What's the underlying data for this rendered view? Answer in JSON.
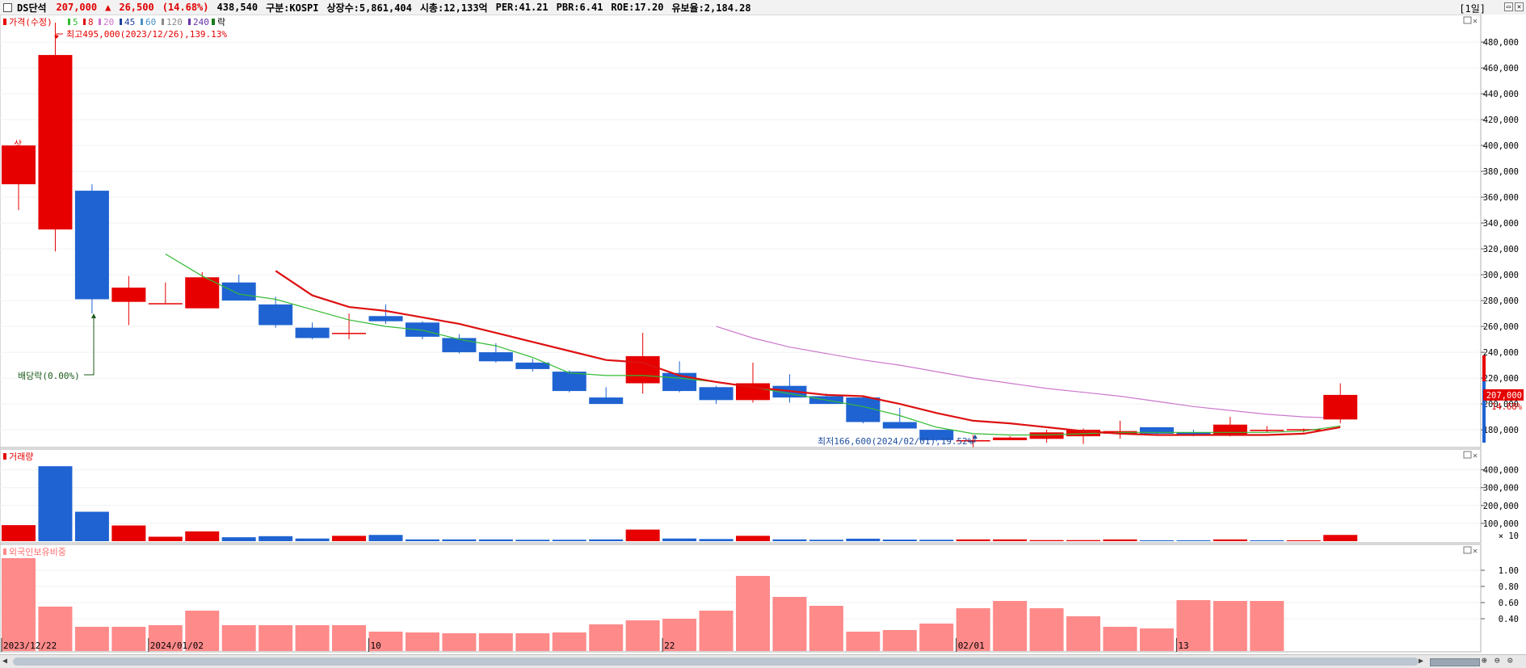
{
  "header": {
    "stock_name": "DS단석",
    "price": "207,000",
    "change_arrow": "▲",
    "change": "26,500",
    "change_pct": "(14.68%)",
    "volume": "438,540",
    "market": "구분:KOSPI",
    "listed_shares": "상장수:5,861,404",
    "market_cap": "시총:12,133억",
    "per": "PER:41.21",
    "pbr": "PBR:6.41",
    "roe": "ROE:17.20",
    "float_ratio": "유보율:2,184.28",
    "period": "[1일]"
  },
  "colors": {
    "up": "#e60000",
    "down": "#1f63d2",
    "ma5": "#33bb33",
    "ma8": "#dd1111",
    "ma20": "#cc77cc",
    "foreign": "#ff8a8a"
  },
  "legend": {
    "price_label": "가격(수정)",
    "ma": [
      {
        "label": "5",
        "color": "#33bb33"
      },
      {
        "label": "8",
        "color": "#dd1111"
      },
      {
        "label": "20",
        "color": "#cc77cc"
      },
      {
        "label": "45",
        "color": "#1f3fa0"
      },
      {
        "label": "60",
        "color": "#4a90c8"
      },
      {
        "label": "120",
        "color": "#8a8a8a"
      },
      {
        "label": "240",
        "color": "#6633aa"
      }
    ],
    "drop_label": "락"
  },
  "annotations": {
    "high": "최고495,000(2023/12/26),139.13%",
    "low": "최저166,600(2024/02/01),19.52%",
    "dividend": "배당락(0.00%)",
    "limit_up": "상"
  },
  "price_panel": {
    "current_label": "207,000",
    "current_pct": "14.68%"
  },
  "volume_panel": {
    "title": "거래량",
    "unit": "× 10"
  },
  "foreign_panel": {
    "title": "외국인보유비중"
  },
  "x_labels": [
    {
      "index": 0,
      "text": "2023/12/22"
    },
    {
      "index": 4,
      "text": "2024/01/02"
    },
    {
      "index": 10,
      "text": "10"
    },
    {
      "index": 18,
      "text": "22"
    },
    {
      "index": 26,
      "text": "02/01"
    },
    {
      "index": 32,
      "text": "13"
    }
  ],
  "chart_data": [
    {
      "type": "candlestick",
      "title": "가격(수정)",
      "y_ticks": [
        180000,
        200000,
        220000,
        240000,
        260000,
        280000,
        300000,
        320000,
        340000,
        360000,
        380000,
        400000,
        420000,
        440000,
        460000,
        480000
      ],
      "ylim": [
        162000,
        500000
      ],
      "candles": [
        {
          "o": 370000,
          "h": 400000,
          "l": 350000,
          "c": 400000
        },
        {
          "o": 335000,
          "h": 495000,
          "l": 318000,
          "c": 470000
        },
        {
          "o": 365000,
          "h": 370000,
          "l": 270000,
          "c": 281000
        },
        {
          "o": 279000,
          "h": 299000,
          "l": 261000,
          "c": 290000
        },
        {
          "o": 278000,
          "h": 294000,
          "l": 278000,
          "c": 278000
        },
        {
          "o": 274000,
          "h": 302000,
          "l": 274000,
          "c": 298000
        },
        {
          "o": 294000,
          "h": 300000,
          "l": 281000,
          "c": 280000
        },
        {
          "o": 277000,
          "h": 283000,
          "l": 259000,
          "c": 261000
        },
        {
          "o": 259000,
          "h": 263000,
          "l": 250000,
          "c": 251000
        },
        {
          "o": 255000,
          "h": 270000,
          "l": 250000,
          "c": 255000
        },
        {
          "o": 268000,
          "h": 277000,
          "l": 262000,
          "c": 264000
        },
        {
          "o": 263000,
          "h": 264000,
          "l": 250000,
          "c": 252000
        },
        {
          "o": 251000,
          "h": 254000,
          "l": 239000,
          "c": 240000
        },
        {
          "o": 240000,
          "h": 247000,
          "l": 232000,
          "c": 233000
        },
        {
          "o": 232000,
          "h": 235000,
          "l": 225000,
          "c": 227000
        },
        {
          "o": 225000,
          "h": 226000,
          "l": 209000,
          "c": 210000
        },
        {
          "o": 205000,
          "h": 213000,
          "l": 200000,
          "c": 200000
        },
        {
          "o": 216000,
          "h": 255000,
          "l": 208000,
          "c": 237000
        },
        {
          "o": 224000,
          "h": 233000,
          "l": 209000,
          "c": 210000
        },
        {
          "o": 213000,
          "h": 214000,
          "l": 200000,
          "c": 203000
        },
        {
          "o": 203000,
          "h": 232000,
          "l": 201000,
          "c": 216000
        },
        {
          "o": 214000,
          "h": 223000,
          "l": 201000,
          "c": 205000
        },
        {
          "o": 206000,
          "h": 208000,
          "l": 200000,
          "c": 200000
        },
        {
          "o": 205000,
          "h": 206000,
          "l": 185000,
          "c": 186000
        },
        {
          "o": 186000,
          "h": 197000,
          "l": 181000,
          "c": 181000
        },
        {
          "o": 180000,
          "h": 180000,
          "l": 171000,
          "c": 172000
        },
        {
          "o": 171000,
          "h": 176000,
          "l": 166600,
          "c": 172000
        },
        {
          "o": 172000,
          "h": 175000,
          "l": 172000,
          "c": 174000
        },
        {
          "o": 173000,
          "h": 180000,
          "l": 170000,
          "c": 178000
        },
        {
          "o": 175000,
          "h": 181000,
          "l": 169000,
          "c": 180000
        },
        {
          "o": 177000,
          "h": 187000,
          "l": 173000,
          "c": 179000
        },
        {
          "o": 182000,
          "h": 182000,
          "l": 176000,
          "c": 177000
        },
        {
          "o": 178000,
          "h": 180000,
          "l": 175000,
          "c": 176000
        },
        {
          "o": 176000,
          "h": 190000,
          "l": 175000,
          "c": 184000
        },
        {
          "o": 179000,
          "h": 183000,
          "l": 178000,
          "c": 180000
        },
        {
          "o": 180500,
          "h": 181000,
          "l": 178000,
          "c": 180500
        },
        {
          "o": 188000,
          "h": 216000,
          "l": 185000,
          "c": 207000
        }
      ],
      "series": [
        {
          "name": "5",
          "values": [
            null,
            null,
            null,
            null,
            316000,
            299000,
            285000,
            281000,
            273000,
            265000,
            260000,
            257000,
            250000,
            245000,
            236000,
            224000,
            222000,
            222000,
            220000,
            217000,
            213000,
            208000,
            203000,
            198000,
            191000,
            182000,
            177000,
            176000,
            176000,
            177000,
            178000,
            178000,
            178000,
            178000,
            178000,
            179000,
            183000
          ]
        },
        {
          "name": "8",
          "values": [
            null,
            null,
            null,
            null,
            null,
            null,
            null,
            303000,
            284000,
            275000,
            272000,
            267000,
            262000,
            255000,
            248000,
            241000,
            234000,
            232000,
            222000,
            217000,
            213000,
            210000,
            207000,
            206000,
            200000,
            193000,
            187000,
            185000,
            182000,
            179000,
            177000,
            176000,
            176000,
            176000,
            176000,
            177000,
            182000
          ]
        },
        {
          "name": "20",
          "values": [
            null,
            null,
            null,
            null,
            null,
            null,
            null,
            null,
            null,
            null,
            null,
            null,
            null,
            null,
            null,
            null,
            null,
            null,
            null,
            260000,
            251000,
            244000,
            239000,
            234000,
            230000,
            225000,
            220000,
            216000,
            212000,
            209000,
            206000,
            202000,
            198000,
            195000,
            192000,
            190000,
            189000
          ]
        }
      ]
    },
    {
      "type": "bar",
      "title": "거래량",
      "y_ticks": [
        100000,
        200000,
        300000,
        400000
      ],
      "ylim": [
        0,
        500000
      ],
      "values": [
        90000,
        420000,
        165000,
        88000,
        25000,
        55000,
        22000,
        28000,
        15000,
        30000,
        35000,
        10000,
        10000,
        10000,
        8000,
        8000,
        10000,
        65000,
        15000,
        12000,
        30000,
        10000,
        8000,
        14000,
        9000,
        8000,
        10000,
        10000,
        6000,
        6000,
        10000,
        5000,
        5000,
        10000,
        5000,
        5000,
        35000
      ],
      "colors": [
        "up",
        "down",
        "down",
        "up",
        "up",
        "up",
        "down",
        "down",
        "down",
        "up",
        "down",
        "down",
        "down",
        "down",
        "down",
        "down",
        "down",
        "up",
        "down",
        "down",
        "up",
        "down",
        "down",
        "down",
        "down",
        "down",
        "up",
        "up",
        "up",
        "up",
        "up",
        "down",
        "down",
        "up",
        "down",
        "up",
        "up"
      ]
    },
    {
      "type": "bar",
      "title": "외국인보유비중",
      "y_ticks": [
        0.4,
        0.6,
        0.8,
        1.0
      ],
      "y_tick_labels": [
        "0.40",
        "0.60",
        "0.80",
        "1.00"
      ],
      "ylim": [
        0.2,
        1.2
      ],
      "values": [
        1.15,
        0.55,
        0.3,
        0.3,
        0.32,
        0.5,
        0.32,
        0.32,
        0.32,
        0.32,
        0.24,
        0.23,
        0.22,
        0.22,
        0.22,
        0.23,
        0.33,
        0.38,
        0.4,
        0.5,
        0.93,
        0.67,
        0.56,
        0.24,
        0.26,
        0.34,
        0.53,
        0.62,
        0.53,
        0.43,
        0.3,
        0.28,
        0.63,
        0.62,
        0.62,
        null,
        null
      ]
    }
  ]
}
